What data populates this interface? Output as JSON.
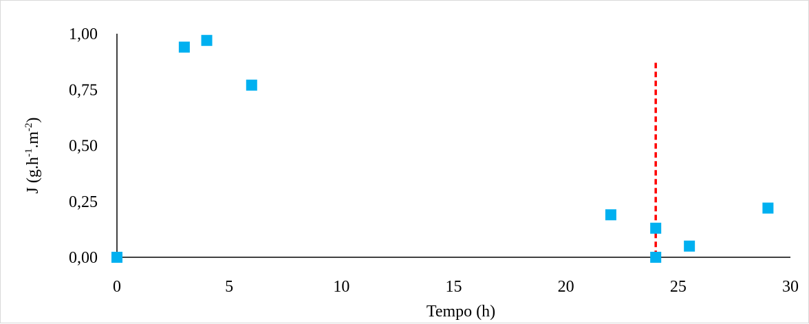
{
  "chart_data": {
    "type": "scatter",
    "title": "",
    "xlabel": "Tempo (h)",
    "ylabel": {
      "base": "J (g.h",
      "exp1": "-1",
      "mid": ".m",
      "exp2": "-2",
      "end": ")"
    },
    "xlim": [
      0,
      30
    ],
    "ylim": [
      0,
      1
    ],
    "x_ticks": [
      0,
      5,
      10,
      15,
      20,
      25,
      30
    ],
    "x_tick_labels": [
      "0",
      "5",
      "10",
      "15",
      "20",
      "25",
      "30"
    ],
    "y_ticks": [
      0,
      0.25,
      0.5,
      0.75,
      1
    ],
    "y_tick_labels": [
      "0,00",
      "0,25",
      "0,50",
      "0,75",
      "1,00"
    ],
    "grid": false,
    "legend": "none",
    "marker_color": "#00b0f0",
    "reference_line": {
      "x": 24,
      "y_top": 0.87,
      "color": "#ff0000",
      "style": "dashed"
    },
    "series": [
      {
        "marker": "square",
        "points": [
          {
            "x": 0,
            "y": 0.0
          },
          {
            "x": 3,
            "y": 0.94
          },
          {
            "x": 4,
            "y": 0.97
          },
          {
            "x": 6,
            "y": 0.77
          },
          {
            "x": 22,
            "y": 0.19
          },
          {
            "x": 24,
            "y": 0.13
          },
          {
            "x": 24,
            "y": 0.0
          },
          {
            "x": 25.5,
            "y": 0.05
          },
          {
            "x": 29,
            "y": 0.22
          }
        ]
      }
    ]
  }
}
